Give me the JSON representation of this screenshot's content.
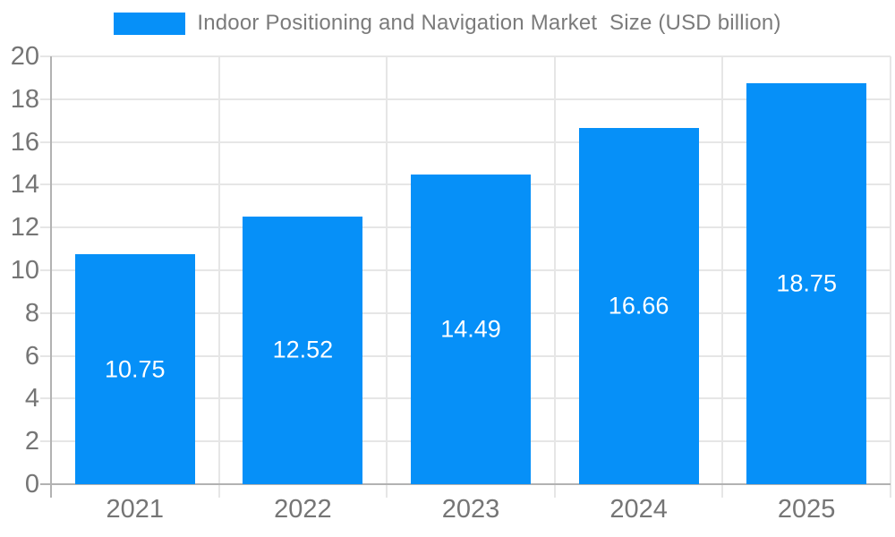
{
  "chart_data": {
    "type": "bar",
    "legend_label": "Indoor Positioning and Navigation Market  Size (USD billion)",
    "categories": [
      "2021",
      "2022",
      "2023",
      "2024",
      "2025"
    ],
    "values": [
      10.75,
      12.52,
      14.49,
      16.66,
      18.75
    ],
    "value_labels": [
      "10.75",
      "12.52",
      "14.49",
      "16.66",
      "18.75"
    ],
    "ylim": [
      0,
      20
    ],
    "ytick_step": 2,
    "ytick_labels": [
      "0",
      "2",
      "4",
      "6",
      "8",
      "10",
      "12",
      "14",
      "16",
      "18",
      "20"
    ],
    "grid": true,
    "legend_position": "top-center",
    "colors": {
      "bar": "#0690f8",
      "grid": "#e6e6e6",
      "axis": "#b2b2b2",
      "tick_text": "#757575",
      "legend_text": "#7b7b7b",
      "bar_label_text": "#ffffff",
      "background": "#ffffff"
    }
  }
}
